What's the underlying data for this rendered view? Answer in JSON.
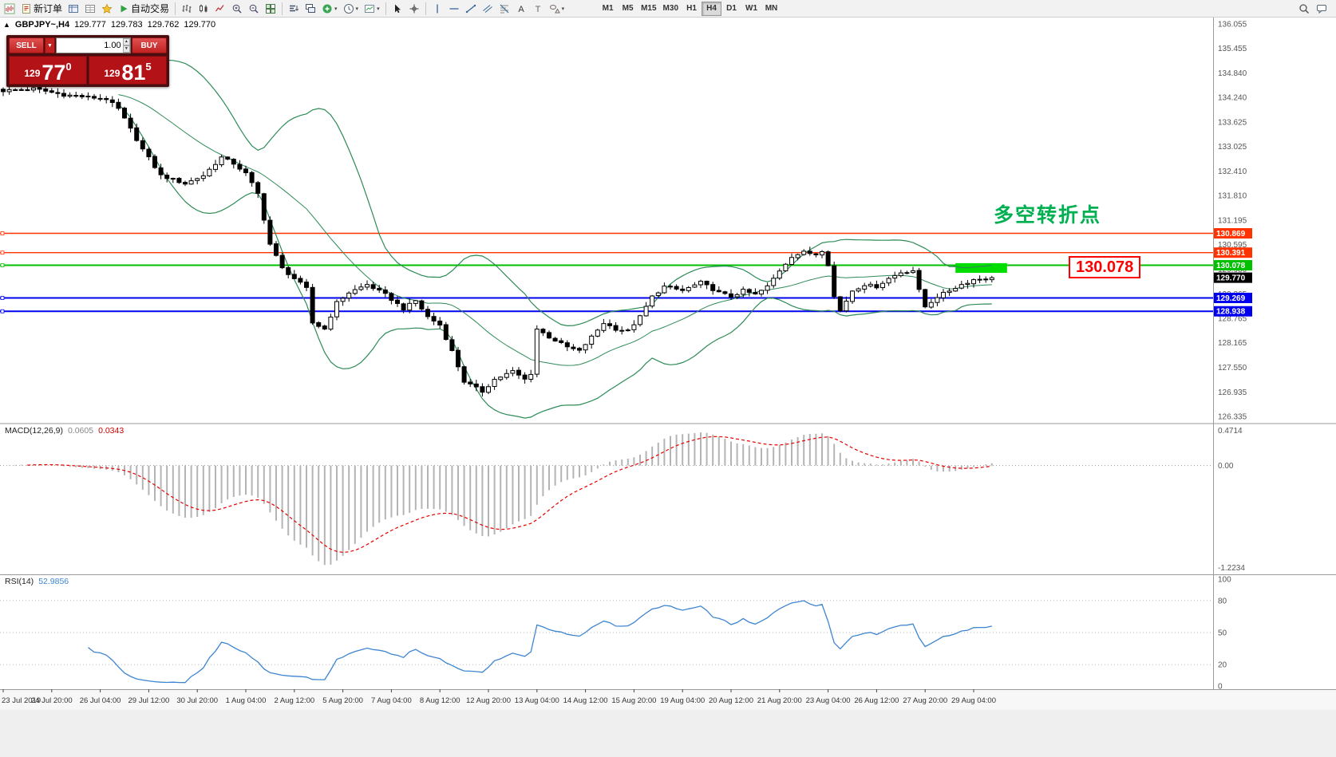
{
  "toolbar": {
    "items": [
      {
        "name": "chart-window-button",
        "icon": "chart-window-icon"
      },
      {
        "name": "new-order-button",
        "icon": "new-order-icon",
        "label": "新订单"
      },
      {
        "name": "market-watch-button",
        "icon": "market-watch-icon"
      },
      {
        "name": "data-window-button",
        "icon": "data-window-icon"
      },
      {
        "name": "navigator-button",
        "icon": "navigator-icon"
      },
      {
        "name": "autotrading-button",
        "icon": "autotrading-icon",
        "label": "自动交易"
      },
      {
        "sep": true
      },
      {
        "name": "bar-chart-button",
        "icon": "bar-chart-icon"
      },
      {
        "name": "candlestick-button",
        "icon": "candlestick-icon"
      },
      {
        "name": "line-chart-button",
        "icon": "line-chart-icon"
      },
      {
        "name": "zoom-in-button",
        "icon": "zoom-in-icon"
      },
      {
        "name": "zoom-out-button",
        "icon": "zoom-out-icon"
      },
      {
        "name": "tile-windows-button",
        "icon": "tile-windows-icon"
      },
      {
        "sep": true
      },
      {
        "name": "arrange-button",
        "icon": "arrange-icon"
      },
      {
        "name": "cascade-button",
        "icon": "cascade-icon"
      },
      {
        "name": "add-indicator-button",
        "icon": "add-indicator-icon",
        "dropdown": true
      },
      {
        "name": "period-button",
        "icon": "period-icon",
        "dropdown": true
      },
      {
        "name": "templates-button",
        "icon": "templates-icon",
        "dropdown": true
      },
      {
        "sep": true
      },
      {
        "name": "cursor-button",
        "icon": "cursor-icon"
      },
      {
        "name": "crosshair-button",
        "icon": "crosshair-icon"
      },
      {
        "sep": true
      },
      {
        "name": "vertical-line-button",
        "icon": "vertical-line-icon"
      },
      {
        "name": "horizontal-line-button",
        "icon": "horizontal-line-icon"
      },
      {
        "name": "trendline-button",
        "icon": "trendline-icon"
      },
      {
        "name": "channel-button",
        "icon": "channel-icon"
      },
      {
        "name": "fibonacci-button",
        "icon": "fibonacci-icon"
      },
      {
        "name": "text-button",
        "icon": "text-icon"
      },
      {
        "name": "label-button",
        "icon": "label-icon"
      },
      {
        "name": "shapes-button",
        "icon": "shapes-icon",
        "dropdown": true
      }
    ],
    "timeframes": [
      "M1",
      "M5",
      "M15",
      "M30",
      "H1",
      "H4",
      "D1",
      "W1",
      "MN"
    ],
    "active_timeframe": "H4",
    "right_items": [
      {
        "name": "search-button",
        "icon": "search-icon"
      },
      {
        "name": "chat-button",
        "icon": "chat-icon"
      }
    ]
  },
  "quote": {
    "symbol": "GBPJPY~,H4",
    "open": "129.777",
    "high": "129.783",
    "low": "129.762",
    "close": "129.770"
  },
  "trade_panel": {
    "sell_label": "SELL",
    "buy_label": "BUY",
    "volume": "1.00",
    "sell_price": {
      "prefix": "129",
      "big": "77",
      "sup": "0"
    },
    "buy_price": {
      "prefix": "129",
      "big": "81",
      "sup": "5"
    }
  },
  "annotations": {
    "turning_point": "多空转折点",
    "level_label": "130.078"
  },
  "chart_data": {
    "type": "candlestick",
    "symbol": "GBPJPY",
    "timeframe": "H4",
    "bar_count": 164,
    "price_axis": {
      "min": 126.335,
      "max": 136.055,
      "labels": [
        "136.055",
        "135.455",
        "134.840",
        "134.240",
        "133.625",
        "133.025",
        "132.410",
        "131.810",
        "131.195",
        "130.595",
        "129.980",
        "129.365",
        "128.765",
        "128.165",
        "127.550",
        "126.935",
        "126.335"
      ]
    },
    "close_anchors": [
      [
        0,
        134.4
      ],
      [
        5,
        134.45
      ],
      [
        10,
        134.3
      ],
      [
        17,
        134.2
      ],
      [
        19,
        133.95
      ],
      [
        21,
        133.45
      ],
      [
        23,
        132.95
      ],
      [
        26,
        132.3
      ],
      [
        30,
        132.1
      ],
      [
        33,
        132.3
      ],
      [
        36,
        132.75
      ],
      [
        38,
        132.6
      ],
      [
        40,
        132.35
      ],
      [
        42,
        131.85
      ],
      [
        44,
        130.6
      ],
      [
        46,
        130.0
      ],
      [
        48,
        129.75
      ],
      [
        50,
        129.5
      ],
      [
        51,
        128.65
      ],
      [
        53,
        128.5
      ],
      [
        55,
        129.15
      ],
      [
        57,
        129.4
      ],
      [
        60,
        129.6
      ],
      [
        63,
        129.35
      ],
      [
        66,
        129.0
      ],
      [
        68,
        129.2
      ],
      [
        70,
        128.8
      ],
      [
        72,
        128.6
      ],
      [
        74,
        127.95
      ],
      [
        76,
        127.2
      ],
      [
        79,
        126.95
      ],
      [
        81,
        127.25
      ],
      [
        84,
        127.45
      ],
      [
        86,
        127.25
      ],
      [
        87,
        127.4
      ],
      [
        88,
        128.5
      ],
      [
        90,
        128.3
      ],
      [
        93,
        128.05
      ],
      [
        95,
        127.95
      ],
      [
        97,
        128.3
      ],
      [
        99,
        128.65
      ],
      [
        101,
        128.5
      ],
      [
        103,
        128.45
      ],
      [
        105,
        128.8
      ],
      [
        107,
        129.3
      ],
      [
        109,
        129.55
      ],
      [
        112,
        129.45
      ],
      [
        115,
        129.65
      ],
      [
        118,
        129.4
      ],
      [
        120,
        129.3
      ],
      [
        122,
        129.45
      ],
      [
        124,
        129.35
      ],
      [
        126,
        129.55
      ],
      [
        128,
        129.95
      ],
      [
        130,
        130.3
      ],
      [
        132,
        130.4
      ],
      [
        134,
        130.35
      ],
      [
        135,
        130.45
      ],
      [
        136,
        130.1
      ],
      [
        137,
        129.3
      ],
      [
        138,
        128.95
      ],
      [
        140,
        129.45
      ],
      [
        142,
        129.6
      ],
      [
        144,
        129.55
      ],
      [
        146,
        129.75
      ],
      [
        148,
        129.9
      ],
      [
        150,
        129.95
      ],
      [
        151,
        129.45
      ],
      [
        152,
        129.05
      ],
      [
        154,
        129.3
      ],
      [
        156,
        129.45
      ],
      [
        158,
        129.6
      ],
      [
        160,
        129.72
      ],
      [
        163,
        129.77
      ]
    ],
    "horizontal_lines": [
      {
        "value": 130.869,
        "label": "130.869",
        "color": "#ff3300",
        "width": 1.4
      },
      {
        "value": 130.391,
        "label": "130.391",
        "color": "#ff3300",
        "width": 1.4
      },
      {
        "value": 130.078,
        "label": "130.078",
        "color": "#00c000",
        "width": 2
      },
      {
        "value": 129.269,
        "label": "129.269",
        "color": "#0000ee",
        "width": 2
      },
      {
        "value": 128.938,
        "label": "128.938",
        "color": "#0000ee",
        "width": 2
      }
    ],
    "current_price": {
      "value": 129.77,
      "label": "129.770",
      "tag_color": "#000000"
    },
    "bollinger": {
      "period": 20,
      "deviation": 2,
      "color": "#2e8b57"
    },
    "highlight_box": {
      "from_bar": 157,
      "to_bar": 165.5,
      "price_top": 130.13,
      "price_bottom": 129.89,
      "color": "#00dd00"
    },
    "candle_colors": {
      "bull_fill": "#ffffff",
      "bear_fill": "#000000",
      "outline": "#000000"
    },
    "indicators": {
      "macd": {
        "name": "MACD(12,26,9)",
        "main_value": "0.0605",
        "signal_value": "0.0343",
        "fast": 12,
        "slow": 26,
        "signal": 9,
        "axis_labels": [
          "0.4714",
          "0.00",
          "-1.2234"
        ],
        "histogram_color": "#b4b4b4",
        "signal_color": "#e60000"
      },
      "rsi": {
        "name": "RSI(14)",
        "value": "52.9856",
        "period": 14,
        "axis_labels": [
          [
            "100",
            100
          ],
          [
            "80",
            80
          ],
          [
            "50",
            50
          ],
          [
            "20",
            20
          ],
          [
            "0",
            0
          ]
        ],
        "levels": [
          80,
          50,
          20
        ],
        "line_color": "#3d85d1"
      }
    },
    "time_axis": {
      "bars_per_label": 8,
      "labels": [
        "23 Jul 2019",
        "24 Jul 20:00",
        "26 Jul 04:00",
        "29 Jul 12:00",
        "30 Jul 20:00",
        "1 Aug 04:00",
        "2 Aug 12:00",
        "5 Aug 20:00",
        "7 Aug 04:00",
        "8 Aug 12:00",
        "12 Aug 20:00",
        "13 Aug 04:00",
        "14 Aug 12:00",
        "15 Aug 20:00",
        "19 Aug 04:00",
        "20 Aug 12:00",
        "21 Aug 20:00",
        "23 Aug 04:00",
        "26 Aug 12:00",
        "27 Aug 20:00",
        "29 Aug 04:00"
      ]
    }
  }
}
